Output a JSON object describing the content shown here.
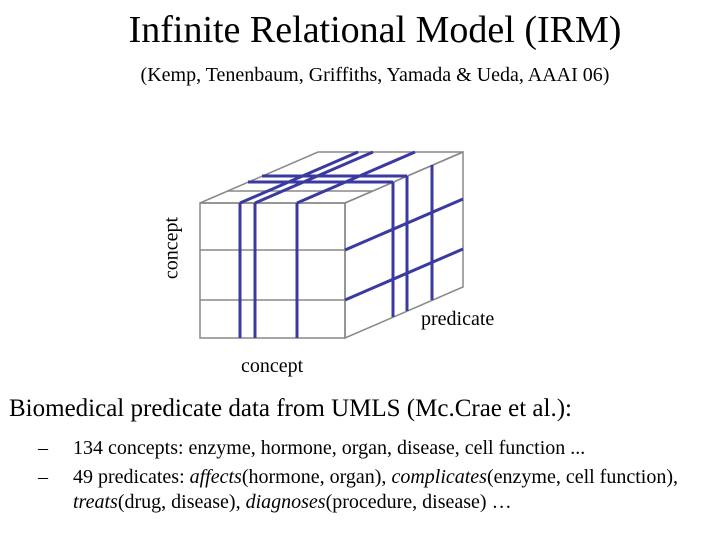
{
  "title": "Infinite Relational Model (IRM)",
  "subtitle": "(Kemp, Tenenbaum, Griffiths, Yamada & Ueda, AAAI 06)",
  "cube_labels": {
    "vertical": "concept",
    "depth": "predicate",
    "horizontal": "concept"
  },
  "heading": "Biomedical predicate data from UMLS (Mc.Crae et al.):",
  "bullets": [
    {
      "marker": "–",
      "segments": [
        {
          "text": "134 concepts: enzyme, hormone, organ, disease, cell function ...",
          "italic": false
        }
      ]
    },
    {
      "marker": "–",
      "segments": [
        {
          "text": "49 predicates: ",
          "italic": false
        },
        {
          "text": "affects",
          "italic": true
        },
        {
          "text": "(hormone, organ), ",
          "italic": false
        },
        {
          "text": "complicates",
          "italic": true
        },
        {
          "text": "(enzyme, cell function), ",
          "italic": false
        },
        {
          "text": "treats",
          "italic": true
        },
        {
          "text": "(drug, disease), ",
          "italic": false
        },
        {
          "text": "diagnoses",
          "italic": true
        },
        {
          "text": "(procedure, disease) …",
          "italic": false
        }
      ]
    }
  ]
}
